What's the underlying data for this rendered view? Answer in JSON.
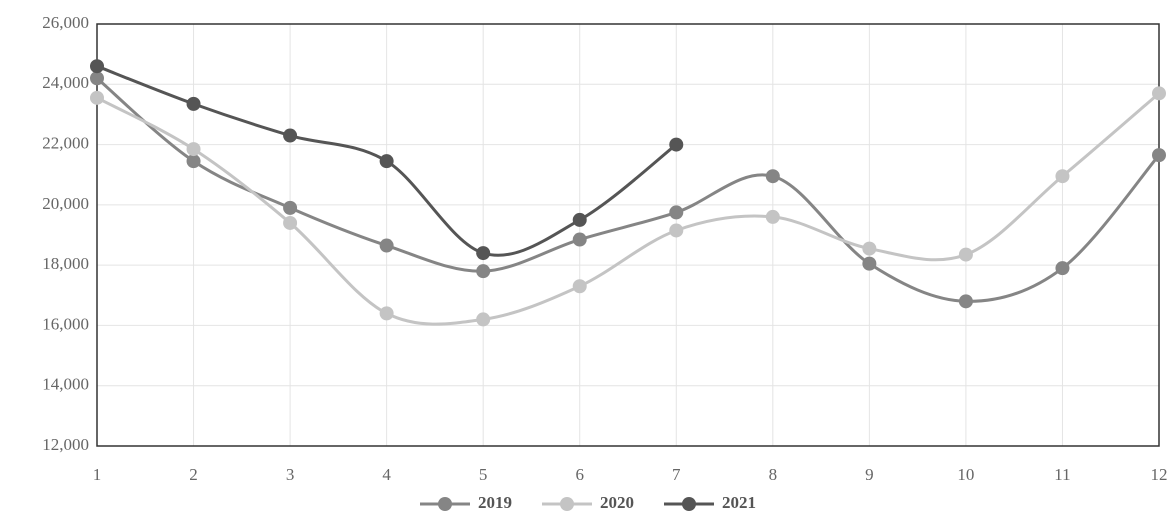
{
  "chart_data": {
    "type": "line",
    "x": [
      1,
      2,
      3,
      4,
      5,
      6,
      7,
      8,
      9,
      10,
      11,
      12
    ],
    "series": [
      {
        "name": "2019",
        "color": "#858585",
        "values": [
          24200,
          21450,
          19900,
          18650,
          17800,
          18850,
          19750,
          20950,
          18050,
          16800,
          17900,
          21650
        ]
      },
      {
        "name": "2020",
        "color": "#c4c4c4",
        "values": [
          23550,
          21850,
          19400,
          16400,
          16200,
          17300,
          19150,
          19600,
          18550,
          18350,
          20950,
          23700
        ]
      },
      {
        "name": "2021",
        "color": "#555555",
        "values": [
          24600,
          23350,
          22300,
          21450,
          18400,
          19500,
          22000,
          null,
          null,
          null,
          null,
          null
        ]
      }
    ],
    "xlim": [
      1,
      12
    ],
    "xticks": [
      1,
      2,
      3,
      4,
      5,
      6,
      7,
      8,
      9,
      10,
      11,
      12
    ],
    "ylim": [
      12000,
      26000
    ],
    "yticks": [
      {
        "value": 12000,
        "label": "12,000"
      },
      {
        "value": 14000,
        "label": "14,000"
      },
      {
        "value": 16000,
        "label": "16,000"
      },
      {
        "value": 18000,
        "label": "18,000"
      },
      {
        "value": 20000,
        "label": "20,000"
      },
      {
        "value": 22000,
        "label": "22,000"
      },
      {
        "value": 24000,
        "label": "24,000"
      },
      {
        "value": 26000,
        "label": "26,000"
      }
    ],
    "grid": true,
    "smooth": true,
    "legend": "bottom"
  }
}
